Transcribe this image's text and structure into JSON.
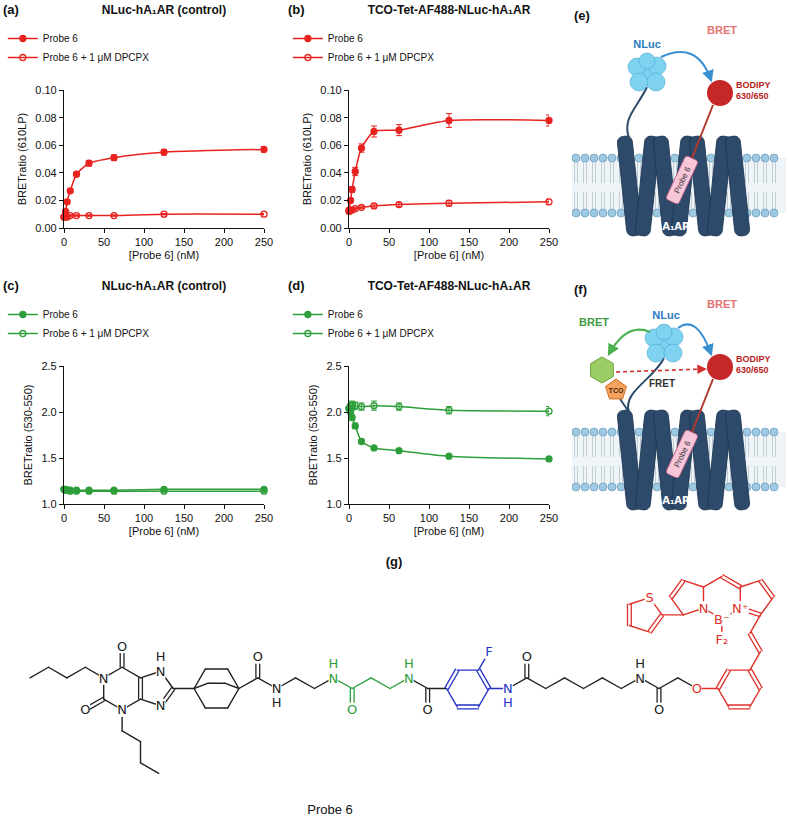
{
  "chart_data": [
    {
      "panel_label": "(a)",
      "type": "line",
      "title": "NLuc-hA₁AR (control)",
      "x_label": "[Probe 6] (nM)",
      "y_label": "BRETratio (610LP)",
      "x": [
        0,
        1.95,
        3.9,
        7.8,
        15.6,
        31.25,
        62.5,
        125,
        250
      ],
      "xlim": [
        0,
        250
      ],
      "xticks": [
        0,
        50,
        100,
        150,
        200,
        250
      ],
      "ylim": [
        0,
        0.1
      ],
      "yticks": [
        {
          "value": 0,
          "label": "0.00"
        },
        {
          "value": 0.02,
          "label": "0.02"
        },
        {
          "value": 0.04,
          "label": "0.04"
        },
        {
          "value": 0.06,
          "label": "0.06"
        },
        {
          "value": 0.08,
          "label": "0.08"
        },
        {
          "value": 0.1,
          "label": "0.10"
        }
      ],
      "grid": false,
      "legend": "top",
      "series": [
        {
          "name": "Probe 6",
          "color": "#e8231f",
          "marker": "circle",
          "line_style": "solid",
          "values": [
            0.008,
            0.012,
            0.019,
            0.027,
            0.039,
            0.047,
            0.051,
            0.055,
            0.057
          ],
          "errors": [
            0.0005,
            0.001,
            0.001,
            0.0015,
            0.0015,
            0.002,
            0.002,
            0.002,
            0.002
          ]
        },
        {
          "name": "Probe 6 + 1 μM DPCPX",
          "color": "#e8231f",
          "marker": "circle-open",
          "line_style": "solid",
          "values": [
            0.008,
            0.008,
            0.008,
            0.009,
            0.009,
            0.009,
            0.009,
            0.01,
            0.01
          ],
          "errors": [
            0.0005,
            0.0005,
            0.0005,
            0.0005,
            0.0005,
            0.0005,
            0.0005,
            0.0005,
            0.0005
          ]
        }
      ]
    },
    {
      "panel_label": "(b)",
      "type": "line",
      "title": "TCO-Tet-AF488-NLuc-hA₁AR",
      "x_label": "[Probe 6] (nM)",
      "y_label": "BRETratio (610LP)",
      "x": [
        0,
        1.95,
        3.9,
        7.8,
        15.6,
        31.25,
        62.5,
        125,
        250
      ],
      "xlim": [
        0,
        250
      ],
      "xticks": [
        0,
        50,
        100,
        150,
        200,
        250
      ],
      "ylim": [
        0,
        0.1
      ],
      "yticks": [
        {
          "value": 0,
          "label": "0.00"
        },
        {
          "value": 0.02,
          "label": "0.02"
        },
        {
          "value": 0.04,
          "label": "0.04"
        },
        {
          "value": 0.06,
          "label": "0.06"
        },
        {
          "value": 0.08,
          "label": "0.08"
        },
        {
          "value": 0.1,
          "label": "0.10"
        }
      ],
      "grid": false,
      "legend": "top",
      "series": [
        {
          "name": "Probe 6",
          "color": "#e8231f",
          "marker": "circle",
          "line_style": "solid",
          "values": [
            0.013,
            0.02,
            0.028,
            0.041,
            0.058,
            0.07,
            0.071,
            0.078,
            0.078
          ],
          "errors": [
            0.001,
            0.001,
            0.002,
            0.003,
            0.003,
            0.004,
            0.004,
            0.005,
            0.004
          ]
        },
        {
          "name": "Probe 6 + 1 μM DPCPX",
          "color": "#e8231f",
          "marker": "circle-open",
          "line_style": "solid",
          "values": [
            0.012,
            0.013,
            0.013,
            0.014,
            0.015,
            0.016,
            0.017,
            0.018,
            0.019
          ],
          "errors": [
            0.001,
            0.001,
            0.001,
            0.001,
            0.001,
            0.0015,
            0.0015,
            0.002,
            0.002
          ]
        }
      ]
    },
    {
      "panel_label": "(c)",
      "type": "line",
      "title": "NLuc-hA₁AR (control)",
      "x_label": "[Probe 6] (nM)",
      "y_label": "BRETratio (530-550)",
      "x": [
        0,
        1.95,
        3.9,
        7.8,
        15.6,
        31.25,
        62.5,
        125,
        250
      ],
      "xlim": [
        0,
        250
      ],
      "xticks": [
        0,
        50,
        100,
        150,
        200,
        250
      ],
      "ylim": [
        1.0,
        2.5
      ],
      "yticks": [
        {
          "value": 1.0,
          "label": "1.0"
        },
        {
          "value": 1.5,
          "label": "1.5"
        },
        {
          "value": 2.0,
          "label": "2.0"
        },
        {
          "value": 2.5,
          "label": "2.5"
        }
      ],
      "grid": false,
      "legend": "top",
      "series": [
        {
          "name": "Probe 6",
          "color": "#2e9e3a",
          "marker": "circle",
          "line_style": "solid",
          "values": [
            1.16,
            1.15,
            1.15,
            1.15,
            1.15,
            1.15,
            1.15,
            1.16,
            1.16
          ],
          "errors": [
            0.01,
            0.01,
            0.01,
            0.01,
            0.01,
            0.01,
            0.01,
            0.01,
            0.01
          ]
        },
        {
          "name": "Probe 6 + 1 μM DPCPX",
          "color": "#2e9e3a",
          "marker": "circle-open",
          "line_style": "solid",
          "values": [
            1.16,
            1.16,
            1.15,
            1.14,
            1.14,
            1.14,
            1.14,
            1.14,
            1.14
          ],
          "errors": [
            0.01,
            0.01,
            0.01,
            0.01,
            0.01,
            0.01,
            0.01,
            0.01,
            0.01
          ]
        }
      ]
    },
    {
      "panel_label": "(d)",
      "type": "line",
      "title": "TCO-Tet-AF488-NLuc-hA₁AR",
      "x_label": "[Probe 6] (nM)",
      "y_label": "BRETratio (530-550)",
      "x": [
        0,
        1.95,
        3.9,
        7.8,
        15.6,
        31.25,
        62.5,
        125,
        250
      ],
      "xlim": [
        0,
        250
      ],
      "xticks": [
        0,
        50,
        100,
        150,
        200,
        250
      ],
      "ylim": [
        1.0,
        2.5
      ],
      "yticks": [
        {
          "value": 1.0,
          "label": "1.0"
        },
        {
          "value": 1.5,
          "label": "1.5"
        },
        {
          "value": 2.0,
          "label": "2.0"
        },
        {
          "value": 2.5,
          "label": "2.5"
        }
      ],
      "grid": false,
      "legend": "top",
      "series": [
        {
          "name": "Probe 6",
          "color": "#2e9e3a",
          "marker": "circle",
          "line_style": "solid",
          "values": [
            2.04,
            2.0,
            1.94,
            1.85,
            1.68,
            1.61,
            1.58,
            1.52,
            1.49
          ],
          "errors": [
            0.03,
            0.04,
            0.03,
            0.03,
            0.02,
            0.02,
            0.02,
            0.01,
            0.01
          ]
        },
        {
          "name": "Probe 6 + 1 μM DPCPX",
          "color": "#2e9e3a",
          "marker": "circle-open",
          "line_style": "solid",
          "values": [
            2.04,
            2.07,
            2.07,
            2.07,
            2.06,
            2.07,
            2.06,
            2.02,
            2.01
          ],
          "errors": [
            0.03,
            0.04,
            0.05,
            0.04,
            0.04,
            0.05,
            0.04,
            0.04,
            0.05
          ]
        }
      ]
    }
  ],
  "diagrams": [
    {
      "panel_label": "(e)",
      "donor": "NLuc",
      "bret": "BRET",
      "acceptor": "BODIPY 630/650",
      "receptor": "A₁AR",
      "ligand": "Probe 6"
    },
    {
      "panel_label": "(f)",
      "donor": "NLuc",
      "bret": "BRET",
      "bret_2": "BRET",
      "tco": "TCO",
      "fret": "FRET",
      "acceptor": "BODIPY 630/650",
      "receptor": "A₁AR",
      "ligand": "Probe 6"
    }
  ],
  "structure": {
    "panel_label": "(g)",
    "caption": "Probe 6",
    "atom_labels": [
      "O",
      "N",
      "O",
      "N",
      "N",
      "H",
      "N",
      "O",
      "N",
      "H",
      "N",
      "H",
      "O",
      "N",
      "H",
      "O",
      "F",
      "N",
      "H",
      "O",
      "N",
      "H",
      "O",
      "O",
      "N",
      "N⁺",
      "B⁻",
      "F₂",
      "S"
    ]
  }
}
